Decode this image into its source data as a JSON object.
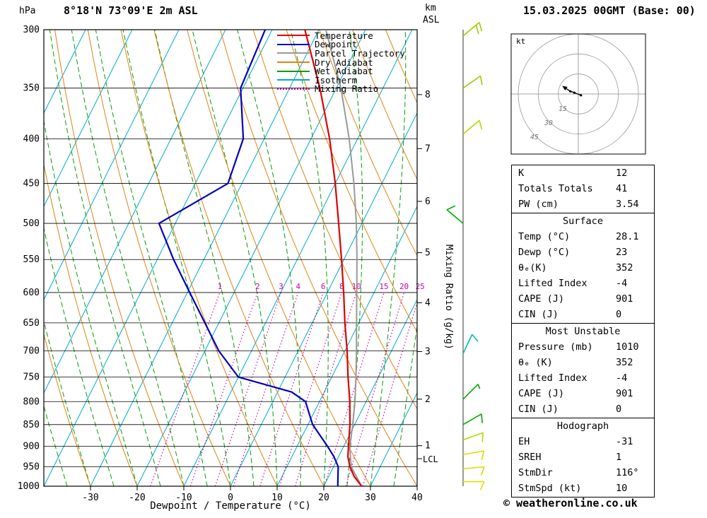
{
  "header": {
    "pressure_unit": "hPa",
    "title": "8°18'N 73°09'E 2m ASL",
    "km_label": "km",
    "asl_label": "ASL",
    "datetime": "15.03.2025 00GMT (Base: 00)"
  },
  "axes": {
    "xlabel": "Dewpoint / Temperature (°C)",
    "x_ticks": [
      -30,
      -20,
      -10,
      0,
      10,
      20,
      30,
      40
    ],
    "pressure_ticks": [
      300,
      350,
      400,
      450,
      500,
      550,
      600,
      650,
      700,
      750,
      800,
      850,
      900,
      950,
      1000
    ],
    "km_ticks": [
      1,
      2,
      3,
      4,
      5,
      6,
      7,
      8
    ],
    "lcl_label": "LCL",
    "mixing_ratio_label": "Mixing Ratio (g/kg)",
    "mixing_ratio_values": [
      1,
      2,
      3,
      4,
      6,
      8,
      10,
      15,
      20,
      25
    ]
  },
  "legend": [
    {
      "label": "Temperature",
      "color": "#dd0000",
      "style": "solid"
    },
    {
      "label": "Dewpoint",
      "color": "#0000bb",
      "style": "solid"
    },
    {
      "label": "Parcel Trajectory",
      "color": "#999999",
      "style": "solid"
    },
    {
      "label": "Dry Adiabat",
      "color": "#e08214",
      "style": "solid"
    },
    {
      "label": "Wet Adiabat",
      "color": "#00a000",
      "style": "solid"
    },
    {
      "label": "Isotherm",
      "color": "#00aacc",
      "style": "solid"
    },
    {
      "label": "Mixing Ratio",
      "color": "#cc00aa",
      "style": "dotted"
    }
  ],
  "colors": {
    "temperature": "#dd0000",
    "dewpoint": "#0000bb",
    "parcel": "#999999",
    "dry_adiabat": "#e08214",
    "wet_adiabat": "#00a000",
    "isotherm": "#00aacc",
    "mixing_ratio": "#cc00aa",
    "grid": "#000000"
  },
  "chart_data": {
    "type": "skewt-logp",
    "title": "8°18'N 73°09'E 2m ASL",
    "xlabel": "Dewpoint / Temperature (°C)",
    "pressure_range_hPa": [
      300,
      1000
    ],
    "temp_range_at_surface_C": [
      -40,
      40
    ],
    "skew_ratio": 0.5,
    "temperature_profile_p_T": [
      [
        1000,
        28.1
      ],
      [
        975,
        25.5
      ],
      [
        950,
        23.5
      ],
      [
        925,
        22
      ],
      [
        900,
        21
      ],
      [
        850,
        19
      ],
      [
        800,
        16.5
      ],
      [
        750,
        13.5
      ],
      [
        700,
        10.5
      ],
      [
        650,
        7
      ],
      [
        600,
        3.5
      ],
      [
        550,
        -0.5
      ],
      [
        500,
        -5
      ],
      [
        450,
        -10
      ],
      [
        400,
        -16
      ],
      [
        350,
        -23.5
      ],
      [
        300,
        -33
      ]
    ],
    "dewpoint_profile_p_T": [
      [
        1000,
        23
      ],
      [
        975,
        22
      ],
      [
        950,
        21
      ],
      [
        925,
        19
      ],
      [
        900,
        16.5
      ],
      [
        850,
        11
      ],
      [
        800,
        7
      ],
      [
        780,
        3
      ],
      [
        750,
        -10
      ],
      [
        700,
        -17
      ],
      [
        650,
        -23
      ],
      [
        600,
        -29.5
      ],
      [
        550,
        -36.5
      ],
      [
        500,
        -43.5
      ],
      [
        450,
        -33
      ],
      [
        400,
        -34.5
      ],
      [
        350,
        -40.5
      ],
      [
        300,
        -41.5
      ]
    ],
    "parcel_profile_p_T": [
      [
        1000,
        28.1
      ],
      [
        950,
        23.8
      ],
      [
        930,
        22.8
      ],
      [
        900,
        21.3
      ],
      [
        850,
        19.6
      ],
      [
        800,
        17.6
      ],
      [
        750,
        15.2
      ],
      [
        700,
        12.5
      ],
      [
        650,
        9.5
      ],
      [
        600,
        6.3
      ],
      [
        550,
        2.8
      ],
      [
        500,
        -1.2
      ],
      [
        450,
        -6
      ],
      [
        400,
        -11.8
      ],
      [
        350,
        -19
      ],
      [
        300,
        -28.5
      ]
    ],
    "isotherms_C": {
      "min": -90,
      "max": 40,
      "step": 10
    },
    "dry_adiabats_C": {
      "min": -40,
      "max": 100,
      "step": 10
    },
    "wet_adiabats_C": {
      "min": -35,
      "max": 40,
      "step": 5
    },
    "mixing_ratio_lines_g_kg": [
      1,
      2,
      3,
      4,
      6,
      8,
      10,
      15,
      20,
      25
    ],
    "surface": {
      "temp_C": 28.1,
      "dewp_C": 23
    },
    "lcl_pressure_hPa": 930
  },
  "hodograph": {
    "unit": "kt",
    "rings_kt": [
      15,
      30,
      45
    ],
    "trace_uv_kt": [
      [
        2,
        -1
      ],
      [
        -3,
        1
      ],
      [
        -6,
        2
      ],
      [
        -9,
        4
      ]
    ]
  },
  "wind_barbs": [
    {
      "pressure": 305,
      "dir_deg": 50,
      "speed_kt": 20,
      "color": "#99cc00"
    },
    {
      "pressure": 350,
      "dir_deg": 55,
      "speed_kt": 10,
      "color": "#99cc00"
    },
    {
      "pressure": 395,
      "dir_deg": 50,
      "speed_kt": 10,
      "color": "#aadd00"
    },
    {
      "pressure": 500,
      "dir_deg": 310,
      "speed_kt": 10,
      "color": "#00aa00"
    },
    {
      "pressure": 705,
      "dir_deg": 25,
      "speed_kt": 10,
      "color": "#00bbaa"
    },
    {
      "pressure": 795,
      "dir_deg": 45,
      "speed_kt": 5,
      "color": "#00aa00"
    },
    {
      "pressure": 850,
      "dir_deg": 60,
      "speed_kt": 10,
      "color": "#00aa00"
    },
    {
      "pressure": 885,
      "dir_deg": 70,
      "speed_kt": 10,
      "color": "#aadd00"
    },
    {
      "pressure": 920,
      "dir_deg": 80,
      "speed_kt": 10,
      "color": "#dddd00"
    },
    {
      "pressure": 955,
      "dir_deg": 85,
      "speed_kt": 10,
      "color": "#dddd00"
    },
    {
      "pressure": 988,
      "dir_deg": 90,
      "speed_kt": 10,
      "color": "#dddd00"
    }
  ],
  "stats": {
    "sections": [
      {
        "title": "",
        "rows": [
          {
            "label": "K",
            "value": "12"
          },
          {
            "label": "Totals Totals",
            "value": "41"
          },
          {
            "label": "PW (cm)",
            "value": "3.54"
          }
        ]
      },
      {
        "title": "Surface",
        "rows": [
          {
            "label": "Temp (°C)",
            "value": "28.1"
          },
          {
            "label": "Dewp (°C)",
            "value": "23"
          },
          {
            "label": "θₑ(K)",
            "value": "352"
          },
          {
            "label": "Lifted Index",
            "value": "-4"
          },
          {
            "label": "CAPE (J)",
            "value": "901"
          },
          {
            "label": "CIN (J)",
            "value": "0"
          }
        ]
      },
      {
        "title": "Most Unstable",
        "rows": [
          {
            "label": "Pressure (mb)",
            "value": "1010"
          },
          {
            "label": "θₑ (K)",
            "value": "352"
          },
          {
            "label": "Lifted Index",
            "value": "-4"
          },
          {
            "label": "CAPE (J)",
            "value": "901"
          },
          {
            "label": "CIN (J)",
            "value": "0"
          }
        ]
      },
      {
        "title": "Hodograph",
        "rows": [
          {
            "label": "EH",
            "value": "-31"
          },
          {
            "label": "SREH",
            "value": "1"
          },
          {
            "label": "StmDir",
            "value": "116°"
          },
          {
            "label": "StmSpd (kt)",
            "value": "10"
          }
        ]
      }
    ]
  },
  "footer": {
    "copyright": "© weatheronline.co.uk"
  }
}
